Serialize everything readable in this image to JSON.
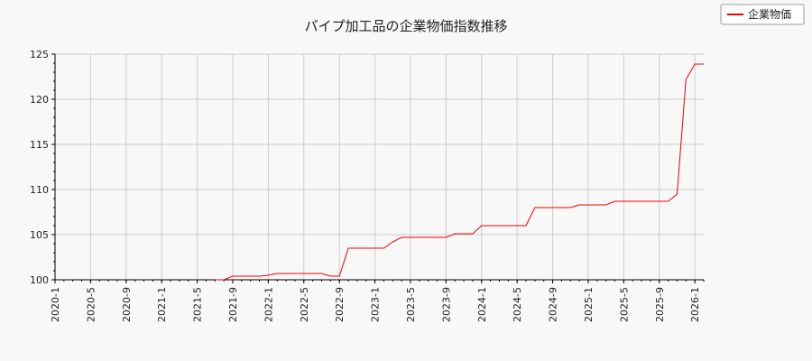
{
  "chart_data": {
    "type": "line",
    "title": "パイプ加工品の企業物価指数推移",
    "xlabel": "",
    "ylabel": "",
    "ylim": [
      100,
      125
    ],
    "xlim": [
      "2020-01",
      "2026-02"
    ],
    "y_ticks": [
      100,
      105,
      110,
      115,
      120,
      125
    ],
    "x_ticks": [
      "2020-1",
      "2020-5",
      "2020-9",
      "2021-1",
      "2021-5",
      "2021-9",
      "2022-1",
      "2022-5",
      "2022-9",
      "2023-1",
      "2023-5",
      "2023-9",
      "2024-1",
      "2024-5",
      "2024-9",
      "2025-1",
      "2025-5",
      "2025-9",
      "2026-1"
    ],
    "grid": true,
    "legend_position": "top-right",
    "series": [
      {
        "name": "企業物価",
        "color": "#ee0000",
        "points": [
          [
            "2021-07",
            100.0
          ],
          [
            "2021-08",
            100.0
          ],
          [
            "2021-09",
            100.4
          ],
          [
            "2021-10",
            100.4
          ],
          [
            "2021-11",
            100.4
          ],
          [
            "2021-12",
            100.4
          ],
          [
            "2022-01",
            100.5
          ],
          [
            "2022-02",
            100.7
          ],
          [
            "2022-03",
            100.7
          ],
          [
            "2022-04",
            100.7
          ],
          [
            "2022-05",
            100.7
          ],
          [
            "2022-06",
            100.7
          ],
          [
            "2022-07",
            100.7
          ],
          [
            "2022-08",
            100.4
          ],
          [
            "2022-09",
            100.4
          ],
          [
            "2022-10",
            103.5
          ],
          [
            "2022-11",
            103.5
          ],
          [
            "2022-12",
            103.5
          ],
          [
            "2023-01",
            103.5
          ],
          [
            "2023-02",
            103.5
          ],
          [
            "2023-03",
            104.2
          ],
          [
            "2023-04",
            104.7
          ],
          [
            "2023-05",
            104.7
          ],
          [
            "2023-06",
            104.7
          ],
          [
            "2023-07",
            104.7
          ],
          [
            "2023-08",
            104.7
          ],
          [
            "2023-09",
            104.7
          ],
          [
            "2023-10",
            105.1
          ],
          [
            "2023-11",
            105.1
          ],
          [
            "2023-12",
            105.1
          ],
          [
            "2024-01",
            106.0
          ],
          [
            "2024-02",
            106.0
          ],
          [
            "2024-03",
            106.0
          ],
          [
            "2024-04",
            106.0
          ],
          [
            "2024-05",
            106.0
          ],
          [
            "2024-06",
            106.0
          ],
          [
            "2024-07",
            108.0
          ],
          [
            "2024-08",
            108.0
          ],
          [
            "2024-09",
            108.0
          ],
          [
            "2024-10",
            108.0
          ],
          [
            "2024-11",
            108.0
          ],
          [
            "2024-12",
            108.3
          ],
          [
            "2025-01",
            108.3
          ],
          [
            "2025-02",
            108.3
          ],
          [
            "2025-03",
            108.3
          ],
          [
            "2025-04",
            108.7
          ],
          [
            "2025-05",
            108.7
          ],
          [
            "2025-06",
            108.7
          ],
          [
            "2025-07",
            108.7
          ],
          [
            "2025-08",
            108.7
          ],
          [
            "2025-09",
            108.7
          ],
          [
            "2025-10",
            108.7
          ],
          [
            "2025-11",
            109.5
          ],
          [
            "2025-12",
            122.2
          ],
          [
            "2026-01",
            123.9
          ],
          [
            "2026-02",
            123.9
          ]
        ]
      }
    ]
  }
}
